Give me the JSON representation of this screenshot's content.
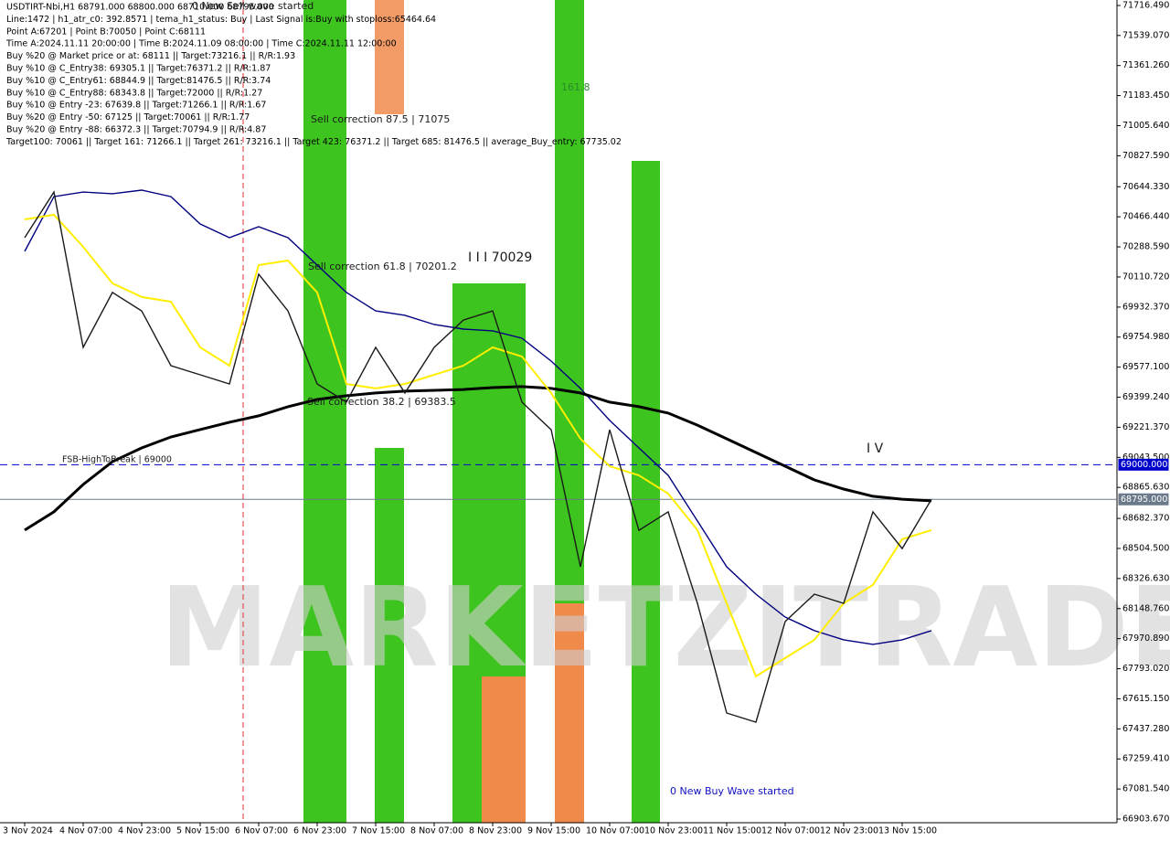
{
  "watermark": "MARKETZITRADE",
  "info_lines": [
    "USDTIRT-Nbi,H1  68791.000 68800.000 68710.000 68795.000",
    "Line:1472  | h1_atr_c0: 392.8571  | tema_h1_status: Buy  | Last Signal is:Buy with stoploss:65464.64",
    "Point A:67201  | Point B:70050  | Point C:68111",
    "Time A:2024.11.11 20:00:00  | Time B:2024.11.09 08:00:00  | Time C:2024.11.11 12:00:00",
    "Buy %20 @ Market price or at: 68111  || Target:73216.1  || R/R:1.93",
    "Buy %10 @ C_Entry38: 69305.1  || Target:76371.2  || R/R:1.87",
    "Buy %10 @ C_Entry61: 68844.9  || Target:81476.5  || R/R:3.74",
    "Buy %10 @ C_Entry88: 68343.8  || Target:72000  || R/R:1.27",
    "Buy %10 @ Entry -23: 67639.8  || Target:71266.1  || R/R:1.67",
    "Buy %20 @ Entry -50: 67125  || Target:70061  || R/R:1.77",
    "Buy %20 @ Entry -88: 66372.3  || Target:70794.9  || R/R:4.87",
    "Target100: 70061  || Target 161: 71266.1  || Target 261: 73216.1  || Target 423: 76371.2  || Target 685: 81476.5  || average_Buy_entry: 67735.02"
  ],
  "annotations": [
    "Sell correction 87.5 | 71075",
    "Sell correction 61.8 | 70201.2",
    "Sell correction 38.2 | 69383.5",
    "I I I 70029",
    "I V",
    "0 New Sell wave started",
    "0 New Buy Wave started",
    "FSB-HighToBreak | 69000",
    "161.8"
  ],
  "chart_data": {
    "type": "line",
    "categories": [
      "3 Nov 2024",
      null,
      "4 Nov 07:00",
      null,
      "4 Nov 23:00",
      null,
      "5 Nov 15:00",
      null,
      "6 Nov 07:00",
      null,
      "6 Nov 23:00",
      null,
      "7 Nov 15:00",
      null,
      "8 Nov 07:00",
      null,
      "8 Nov 23:00",
      null,
      "9 Nov 15:00",
      null,
      "10 Nov 07:00",
      null,
      "10 Nov 23:00",
      null,
      "11 Nov 15:00",
      null,
      "12 Nov 07:00",
      null,
      "12 Nov 23:00",
      null,
      "13 Nov 15:00",
      null
    ],
    "series": [
      {
        "color": "#000080",
        "values": [
          70262,
          70586,
          70613,
          70603,
          70624,
          70586,
          70424,
          70343,
          70408,
          70343,
          70181,
          70019,
          69910,
          69884,
          69829,
          69802,
          69792,
          69748,
          69613,
          69451,
          69262,
          69099,
          68937,
          68667,
          68396,
          68234,
          68099,
          68018,
          67964,
          67937,
          67964,
          68018
        ]
      },
      {
        "color": "#000000",
        "values": [
          68613,
          68721,
          68883,
          69018,
          69099,
          69164,
          69208,
          69251,
          69289,
          69343,
          69386,
          69408,
          69424,
          69435,
          69440,
          69445,
          69456,
          69462,
          69451,
          69424,
          69370,
          69343,
          69305,
          69234,
          69153,
          69072,
          68991,
          68910,
          68856,
          68813,
          68796,
          68786
        ]
      },
      {
        "color": "#ffee00",
        "values": [
          70451,
          70478,
          70289,
          70073,
          69992,
          69964,
          69694,
          69586,
          70181,
          70208,
          70019,
          69478,
          69451,
          69478,
          69532,
          69586,
          69694,
          69640,
          69424,
          69153,
          68991,
          68937,
          68829,
          68613,
          68180,
          67748,
          67856,
          67964,
          68180,
          68289,
          68559,
          68613
        ]
      },
      {
        "color": "#1a1a1a",
        "values": [
          70343,
          70613,
          69694,
          70019,
          69910,
          69586,
          69532,
          69478,
          70127,
          69910,
          69478,
          69370,
          69694,
          69424,
          69694,
          69856,
          69910,
          69370,
          69207,
          68396,
          69207,
          68612,
          68721,
          68180,
          67531,
          67477,
          68072,
          68234,
          68180,
          68721,
          68504,
          68795
        ]
      }
    ],
    "ylim": [
      66882,
      71749
    ],
    "yticks": [
      {
        "value": 71716.49,
        "label": "71716.490"
      },
      {
        "value": 71539.07,
        "label": "71539.070"
      },
      {
        "value": 71361.26,
        "label": "71361.260"
      },
      {
        "value": 71183.45,
        "label": "71183.450"
      },
      {
        "value": 71005.64,
        "label": "71005.640"
      },
      {
        "value": 70827.59,
        "label": "70827.590"
      },
      {
        "value": 70644.33,
        "label": "70644.330"
      },
      {
        "value": 70466.44,
        "label": "70466.440"
      },
      {
        "value": 70288.59,
        "label": "70288.590"
      },
      {
        "value": 70110.72,
        "label": "70110.720"
      },
      {
        "value": 69932.37,
        "label": "69932.370"
      },
      {
        "value": 69754.98,
        "label": "69754.980"
      },
      {
        "value": 69577.1,
        "label": "69577.100"
      },
      {
        "value": 69399.24,
        "label": "69399.240"
      },
      {
        "value": 69221.37,
        "label": "69221.370"
      },
      {
        "value": 69043.5,
        "label": "69043.500"
      },
      {
        "value": 68865.63,
        "label": "68865.630"
      },
      {
        "value": 68682.37,
        "label": "68682.370"
      },
      {
        "value": 68504.5,
        "label": "68504.500"
      },
      {
        "value": 68326.63,
        "label": "68326.630"
      },
      {
        "value": 68148.76,
        "label": "68148.760"
      },
      {
        "value": 67970.89,
        "label": "67970.890"
      },
      {
        "value": 67793.02,
        "label": "67793.020"
      },
      {
        "value": 67615.15,
        "label": "67615.150"
      },
      {
        "value": 67437.28,
        "label": "67437.280"
      },
      {
        "value": 67259.41,
        "label": "67259.410"
      },
      {
        "value": 67081.54,
        "label": "67081.540"
      },
      {
        "value": 66903.67,
        "label": "66903.670"
      }
    ],
    "price_lines": [
      {
        "value": 69000,
        "label": "69000.000",
        "color": "#0000cc"
      },
      {
        "value": 68795,
        "label": "68795.000",
        "color": "#6a7a8a"
      }
    ]
  }
}
